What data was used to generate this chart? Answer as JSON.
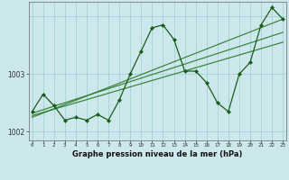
{
  "title": "Graphe pression niveau de la mer (hPa)",
  "hours": [
    0,
    1,
    2,
    3,
    4,
    5,
    6,
    7,
    8,
    9,
    10,
    11,
    12,
    13,
    14,
    15,
    16,
    17,
    18,
    19,
    20,
    21,
    22,
    23
  ],
  "pressure": [
    1002.35,
    1002.65,
    1002.45,
    1002.2,
    1002.25,
    1002.2,
    1002.3,
    1002.2,
    1002.55,
    1003.0,
    1003.4,
    1003.8,
    1003.85,
    1003.6,
    1003.05,
    1003.05,
    1002.85,
    1002.5,
    1002.35,
    1003.0,
    1003.2,
    1003.85,
    1004.15,
    1003.95
  ],
  "ylim": [
    1001.85,
    1004.25
  ],
  "ytick_vals": [
    1002.0,
    1003.0
  ],
  "ytick_labels": [
    "1002",
    "1003"
  ],
  "xlim": [
    -0.3,
    23.3
  ],
  "bg_color": "#cde8ec",
  "line_color": "#1a5c1a",
  "grid_color": "#9ecdd2",
  "trend_color": "#2d7a2d",
  "figsize": [
    3.2,
    2.0
  ],
  "dpi": 100,
  "trend_lines": [
    {
      "x0": 0,
      "y0": 1002.28,
      "x1": 23,
      "y1": 1003.55
    },
    {
      "x0": 0,
      "y0": 1002.32,
      "x1": 23,
      "y1": 1003.72
    },
    {
      "x0": 0,
      "y0": 1002.25,
      "x1": 23,
      "y1": 1003.95
    }
  ]
}
